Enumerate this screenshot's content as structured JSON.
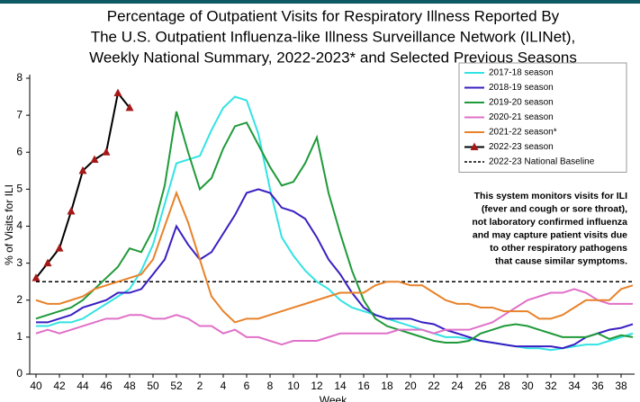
{
  "chart_data": {
    "type": "line",
    "title": [
      "Percentage of Outpatient Visits for Respiratory Illness Reported By",
      "The U.S. Outpatient Influenza-like Illness Surveillance Network (ILINet),",
      "Weekly National Summary, 2022-2023* and Selected Previous Seasons"
    ],
    "y_label": "% of Visits for ILI",
    "x_label": "Week",
    "categories": [
      40,
      null,
      42,
      null,
      44,
      null,
      46,
      null,
      48,
      null,
      50,
      null,
      52,
      null,
      2,
      null,
      4,
      null,
      6,
      null,
      8,
      null,
      10,
      null,
      12,
      null,
      14,
      null,
      16,
      null,
      18,
      null,
      20,
      null,
      22,
      null,
      24,
      null,
      26,
      null,
      28,
      null,
      30,
      null,
      32,
      null,
      34,
      null,
      36,
      null,
      38,
      null
    ],
    "ylim": [
      0,
      8
    ],
    "yticks": [
      0,
      1,
      2,
      3,
      4,
      5,
      6,
      7,
      8
    ],
    "series": [
      {
        "name": "2017-18 season",
        "color": "#33e3e3",
        "values": [
          1.3,
          1.3,
          1.4,
          1.4,
          1.5,
          1.7,
          1.9,
          2.1,
          2.3,
          2.8,
          3.5,
          4.6,
          5.7,
          5.8,
          5.9,
          6.6,
          7.2,
          7.5,
          7.4,
          6.5,
          5.0,
          3.7,
          3.2,
          2.8,
          2.5,
          2.3,
          2.0,
          1.8,
          1.7,
          1.6,
          1.5,
          1.4,
          1.3,
          1.2,
          1.1,
          1.0,
          1.0,
          0.95,
          0.9,
          0.85,
          0.8,
          0.75,
          0.7,
          0.7,
          0.65,
          0.7,
          0.75,
          0.8,
          0.8,
          0.9,
          1.0,
          1.1
        ]
      },
      {
        "name": "2018-19 season",
        "color": "#3a1fc2",
        "values": [
          1.4,
          1.4,
          1.5,
          1.6,
          1.8,
          1.9,
          2.0,
          2.2,
          2.2,
          2.3,
          2.7,
          3.1,
          4.0,
          3.5,
          3.1,
          3.3,
          3.8,
          4.3,
          4.9,
          5.0,
          4.9,
          4.5,
          4.4,
          4.2,
          3.7,
          3.1,
          2.7,
          2.2,
          1.8,
          1.6,
          1.5,
          1.5,
          1.5,
          1.4,
          1.35,
          1.2,
          1.1,
          1.0,
          0.9,
          0.85,
          0.8,
          0.75,
          0.75,
          0.75,
          0.75,
          0.7,
          0.8,
          1.0,
          1.1,
          1.2,
          1.25,
          1.35
        ]
      },
      {
        "name": "2019-20 season",
        "color": "#1f9a3a",
        "values": [
          1.5,
          1.6,
          1.7,
          1.8,
          2.0,
          2.3,
          2.6,
          2.9,
          3.4,
          3.3,
          3.9,
          5.1,
          7.1,
          6.0,
          5.0,
          5.3,
          6.1,
          6.7,
          6.8,
          6.2,
          5.6,
          5.1,
          5.2,
          5.7,
          6.4,
          4.9,
          3.8,
          2.8,
          2.0,
          1.5,
          1.3,
          1.2,
          1.1,
          1.0,
          0.9,
          0.85,
          0.85,
          0.9,
          1.1,
          1.2,
          1.3,
          1.35,
          1.3,
          1.2,
          1.1,
          1.0,
          1.0,
          1.0,
          1.1,
          0.95,
          1.05,
          1.0
        ]
      },
      {
        "name": "2020-21 season",
        "color": "#e070c8",
        "values": [
          1.1,
          1.2,
          1.1,
          1.2,
          1.3,
          1.4,
          1.5,
          1.5,
          1.6,
          1.6,
          1.5,
          1.5,
          1.6,
          1.5,
          1.3,
          1.3,
          1.1,
          1.2,
          1.0,
          1.0,
          0.9,
          0.8,
          0.9,
          0.9,
          0.9,
          1.0,
          1.1,
          1.1,
          1.1,
          1.1,
          1.1,
          1.2,
          1.2,
          1.2,
          1.1,
          1.2,
          1.2,
          1.2,
          1.3,
          1.4,
          1.6,
          1.8,
          2.0,
          2.1,
          2.2,
          2.2,
          2.3,
          2.2,
          2.0,
          1.9,
          1.9,
          1.9
        ]
      },
      {
        "name": "2021-22 season*",
        "color": "#e8822a",
        "values": [
          2.0,
          1.9,
          1.9,
          2.0,
          2.1,
          2.3,
          2.4,
          2.5,
          2.6,
          2.7,
          3.1,
          4.0,
          4.9,
          4.1,
          3.1,
          2.1,
          1.7,
          1.4,
          1.5,
          1.5,
          1.6,
          1.7,
          1.8,
          1.9,
          2.0,
          2.1,
          2.2,
          2.2,
          2.2,
          2.4,
          2.5,
          2.5,
          2.4,
          2.4,
          2.2,
          2.0,
          1.9,
          1.9,
          1.8,
          1.8,
          1.7,
          1.7,
          1.7,
          1.5,
          1.5,
          1.6,
          1.8,
          2.0,
          2.0,
          2.0,
          2.3,
          2.4
        ]
      },
      {
        "name": "2022-23 season",
        "color": "#000000",
        "marker_color": "#a51818",
        "values": [
          2.6,
          3.0,
          3.4,
          4.4,
          5.5,
          5.8,
          6.0,
          7.6,
          7.2,
          null,
          null,
          null,
          null,
          null,
          null,
          null,
          null,
          null,
          null,
          null,
          null,
          null,
          null,
          null,
          null,
          null,
          null,
          null,
          null,
          null,
          null,
          null,
          null,
          null,
          null,
          null,
          null,
          null,
          null,
          null,
          null,
          null,
          null,
          null,
          null,
          null,
          null,
          null,
          null,
          null,
          null,
          null
        ]
      }
    ],
    "baseline": {
      "name": "2022-23 National Baseline",
      "value": 2.5,
      "color": "#000000"
    },
    "annotation": [
      "This system monitors visits for ILI",
      "(fever and cough or sore throat),",
      "not laboratory confirmed influenza",
      "and may capture patient visits due",
      "to other respiratory pathogens",
      "that cause similar symptoms."
    ],
    "legend": "upper right"
  }
}
